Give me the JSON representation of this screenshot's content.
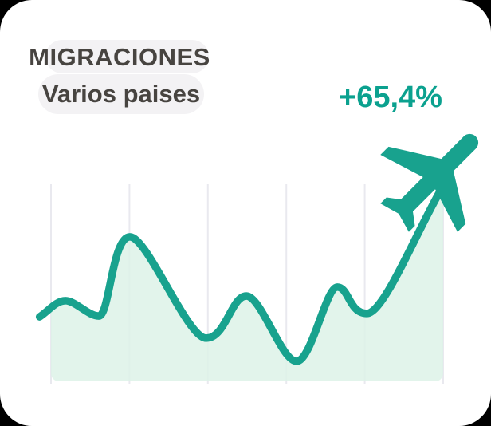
{
  "card": {
    "title": "MIGRACIONES",
    "subtitle": "Varios paises",
    "trend_label": "+65,4%"
  },
  "colors": {
    "page_bg": "#000000",
    "card_bg": "#ffffff",
    "pill_bg": "#f3f2f4",
    "title_text": "#474440",
    "accent": "#18a28e",
    "trend_text": "#0ba18f",
    "area_fill": "#ddf2e8",
    "gridline": "#e9e9ef"
  },
  "chart_data": {
    "type": "area",
    "title": "MIGRACIONES",
    "subtitle": "Varios paises",
    "trend_label": "+65,4%",
    "xlabel": "",
    "ylabel": "",
    "x_axis": {
      "tick_labels": [],
      "vertical_gridlines": 6
    },
    "y_axis": {
      "tick_labels": [],
      "range": [
        0,
        100
      ]
    },
    "legend": "none",
    "series": [
      {
        "name": "migraciones",
        "points": [
          [
            -2.9,
            32.9
          ],
          [
            3.7,
            41.1
          ],
          [
            12.2,
            33.3
          ],
          [
            20.1,
            73.6
          ],
          [
            39.6,
            22.0
          ],
          [
            49.8,
            43.5
          ],
          [
            62.6,
            10.2
          ],
          [
            73.0,
            48.0
          ],
          [
            80.5,
            34.6
          ],
          [
            100.0,
            99.6
          ]
        ]
      }
    ],
    "annotations": [
      "airplane icon at the end of the rising trend line, pointing up-right"
    ]
  }
}
